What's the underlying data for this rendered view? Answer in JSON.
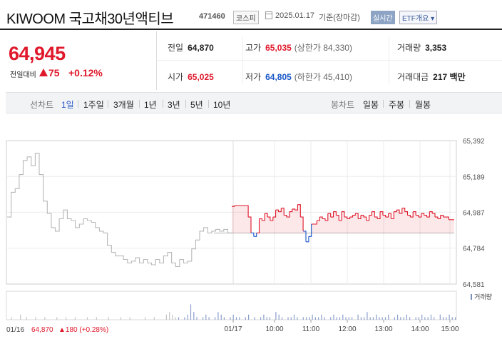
{
  "header": {
    "name": "KIWOOM 국고채30년액티브",
    "code": "471460",
    "market": "코스피",
    "date": "2025.01.17",
    "basis": "기준(장마감)",
    "realtime": "실시간",
    "etf_button": "ETF개요 ▾"
  },
  "price": {
    "current": "64,945",
    "change_label": "전일대비",
    "change_value": "75",
    "change_pct": "+0.12%",
    "color": "#e0182b"
  },
  "quotes": {
    "prev_label": "전일",
    "prev_value": "64,870",
    "high_label": "고가",
    "high_value": "65,035",
    "upper_label": "(상한가 84,330)",
    "volume_label": "거래량",
    "volume_value": "3,353",
    "open_label": "시가",
    "open_value": "65,025",
    "low_label": "저가",
    "low_value": "64,805",
    "lower_label": "(하한가 45,410)",
    "amount_label": "거래대금",
    "amount_value": "217 백만"
  },
  "toolbar": {
    "line_label": "선차트",
    "line_periods": [
      "1일",
      "1주일",
      "3개월",
      "1년",
      "3년",
      "5년",
      "10년"
    ],
    "selected_period": "1일",
    "candle_label": "봉차트",
    "candle_periods": [
      "일봉",
      "주봉",
      "월봉"
    ]
  },
  "chart_data": {
    "type": "line",
    "y_ticks": [
      "65,392",
      "65,189",
      "64,987",
      "64,784",
      "64,581"
    ],
    "ylim": [
      64581,
      65392
    ],
    "baseline": 64870,
    "x_labels": [
      "01/16",
      "01/17",
      "10:00",
      "11:00",
      "12:00",
      "13:00",
      "14:00",
      "15:00"
    ],
    "volume_label": "거래량",
    "prev_day": [
      64960,
      65100,
      65120,
      65200,
      65280,
      65300,
      65250,
      65320,
      65200,
      65050,
      64980,
      64900,
      64880,
      64950,
      65000,
      64950,
      64940,
      64900,
      64920,
      64950,
      64940,
      64930,
      64900,
      64880,
      64870,
      64800,
      64760,
      64740,
      64740,
      64720,
      64700,
      64710,
      64730,
      64700,
      64720,
      64700,
      64690,
      64720,
      64700,
      64740,
      64760,
      64700,
      64680,
      64720,
      64700,
      64710,
      64780,
      64830,
      64880,
      64900,
      64870,
      64880,
      64890,
      64880,
      64890,
      64870,
      64870
    ],
    "today": [
      65020,
      65025,
      65025,
      65025,
      65025,
      65025,
      64960,
      64870,
      64850,
      64870,
      64950,
      64940,
      64980,
      64960,
      64940,
      64960,
      65000,
      64990,
      65010,
      64970,
      64960,
      64990,
      65005,
      65000,
      65030,
      64960,
      64880,
      64820,
      64850,
      64920,
      64920,
      64940,
      64960,
      64950,
      64940,
      64980,
      64960,
      64990,
      64970,
      64940,
      64990,
      64960,
      64950,
      64960,
      64970,
      64980,
      64950,
      64970,
      64960,
      64940,
      64970,
      64990,
      64960,
      64950,
      64990,
      64970,
      64960,
      64980,
      64950,
      64990,
      65000,
      64980,
      65010,
      64990,
      64970,
      64960,
      64990,
      64970,
      64960,
      64980,
      64970,
      64960,
      64990,
      64980,
      64960,
      64950,
      64970,
      64960,
      64960,
      64945,
      64945,
      64945
    ],
    "volume": [
      0,
      1,
      0,
      0,
      2,
      0,
      1,
      0,
      0,
      1,
      0,
      0,
      1,
      0,
      0,
      0,
      1,
      0,
      0,
      1,
      0,
      0,
      1,
      0,
      0,
      0,
      1,
      0,
      0,
      1,
      0,
      0,
      0,
      1,
      0,
      0,
      0,
      1,
      0,
      0,
      1,
      0,
      0,
      0,
      0,
      1,
      0,
      0,
      1,
      0,
      0,
      0,
      2,
      3,
      2,
      1,
      1,
      0,
      1,
      2,
      6,
      3,
      1,
      0,
      1,
      2,
      1,
      0,
      1,
      3,
      2,
      1,
      0,
      1,
      2,
      1,
      1,
      0,
      1,
      2,
      0,
      1,
      0,
      1,
      2,
      1,
      1,
      0,
      3,
      2,
      1,
      0,
      1,
      1,
      2,
      1,
      0,
      1,
      1,
      1,
      2,
      1,
      1,
      2,
      1,
      0,
      1,
      2,
      1,
      1,
      2,
      1,
      1,
      1,
      0,
      2,
      1,
      1,
      3,
      1,
      1,
      2,
      1,
      1,
      1,
      2,
      0,
      1,
      2,
      1,
      1,
      2,
      1,
      0,
      1,
      1,
      2,
      1,
      1,
      2,
      1,
      0,
      2,
      1,
      1,
      2,
      1,
      1
    ],
    "footer_prev_date": "01/16",
    "footer_prev_close": "64,870",
    "footer_change": "▲180 (+0.28%)"
  }
}
